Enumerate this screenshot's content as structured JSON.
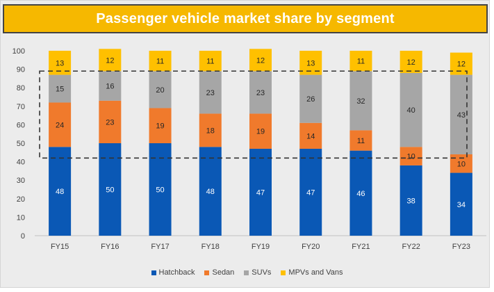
{
  "title": "Passenger vehicle market share by segment",
  "colors": {
    "Hatchback": "#0a58b5",
    "Sedan": "#f07a2c",
    "SUVs": "#a6a6a6",
    "MPVs and Vans": "#ffc000"
  },
  "chart_data": {
    "type": "bar",
    "stacked": true,
    "title": "Passenger vehicle market share by segment",
    "xlabel": "",
    "ylabel": "",
    "ylim": [
      0,
      100
    ],
    "yticks": [
      0,
      10,
      20,
      30,
      40,
      50,
      60,
      70,
      80,
      90,
      100
    ],
    "grid": false,
    "legend_position": "bottom",
    "categories": [
      "FY15",
      "FY16",
      "FY17",
      "FY18",
      "FY19",
      "FY20",
      "FY21",
      "FY22",
      "FY23"
    ],
    "series": [
      {
        "name": "Hatchback",
        "values": [
          48,
          50,
          50,
          48,
          47,
          47,
          46,
          38,
          34
        ]
      },
      {
        "name": "Sedan",
        "values": [
          24,
          23,
          19,
          18,
          19,
          14,
          11,
          10,
          10
        ]
      },
      {
        "name": "SUVs",
        "values": [
          15,
          16,
          20,
          23,
          23,
          26,
          32,
          40,
          43
        ]
      },
      {
        "name": "MPVs and Vans",
        "values": [
          13,
          12,
          11,
          11,
          12,
          13,
          11,
          12,
          12
        ]
      }
    ],
    "highlight_band": {
      "style": "dashed",
      "y_from": 42,
      "y_to": 89
    }
  }
}
